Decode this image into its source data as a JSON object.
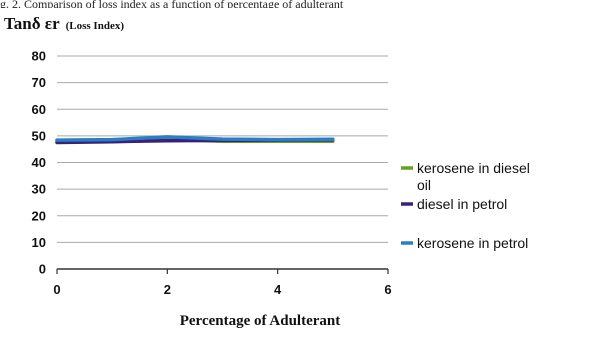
{
  "header_fragment": "g. 2. Comparison of loss index as a function of percentage of adulterant",
  "chart_data": {
    "type": "line",
    "ylabel": "Tanδ εr",
    "ylabel_suffix": "(Loss Index)",
    "xlabel": "Percentage of Adulterant",
    "xlim": [
      0,
      6
    ],
    "ylim": [
      0,
      80
    ],
    "x_ticks": [
      "0",
      "2",
      "4",
      "6"
    ],
    "y_ticks": [
      "0",
      "10",
      "20",
      "30",
      "40",
      "50",
      "60",
      "70",
      "80"
    ],
    "grid": true,
    "legend_position": "right",
    "series": [
      {
        "name": "kerosene in diesel oil",
        "color": "#6aa11f",
        "x": [
          0,
          1,
          2,
          3,
          4,
          5
        ],
        "y": [
          48,
          48.3,
          48.6,
          48,
          48,
          48
        ]
      },
      {
        "name": "diesel in petrol",
        "color": "#3b1f7a",
        "x": [
          0,
          1,
          2,
          3,
          4,
          5
        ],
        "y": [
          47.5,
          47.8,
          48.2,
          48.3,
          48.4,
          48.5
        ]
      },
      {
        "name": "kerosene in petrol",
        "color": "#2a7fc4",
        "x": [
          0,
          1,
          2,
          3,
          4,
          5
        ],
        "y": [
          48.4,
          48.6,
          49.6,
          48.8,
          48.6,
          48.7
        ]
      }
    ]
  }
}
